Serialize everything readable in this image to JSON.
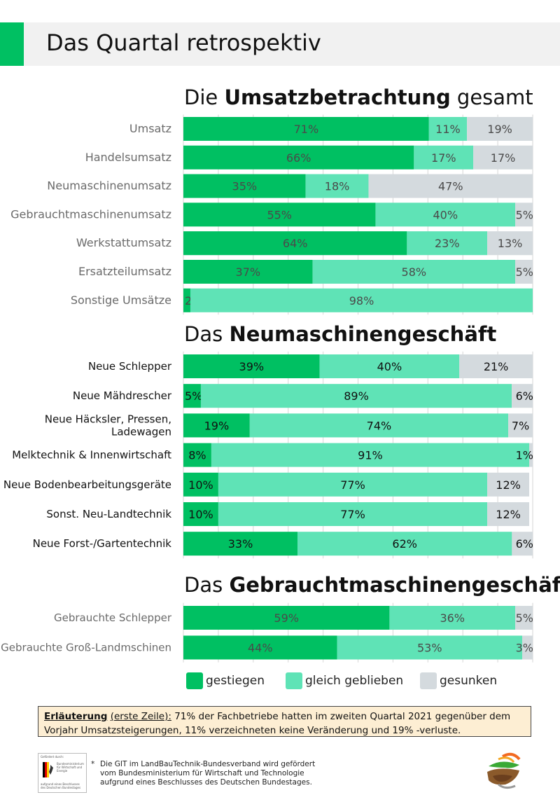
{
  "page_title": "Das Quartal retrospektiv",
  "sections": [
    {
      "heading_pre": "Die ",
      "heading_bold": "Umsatzbetrachtung",
      "heading_post": " gesamt"
    },
    {
      "heading_pre": "Das ",
      "heading_bold": "Neumaschinengeschäft",
      "heading_post": ""
    },
    {
      "heading_pre": "Das ",
      "heading_bold": "Gebrauchtmaschinengeschäft",
      "heading_post": ""
    }
  ],
  "legend": {
    "items": [
      {
        "label": "gestiegen",
        "color": "#00c062"
      },
      {
        "label": "gleich geblieben",
        "color": "#5fe3b6"
      },
      {
        "label": "gesunken",
        "color": "#d4dade"
      }
    ]
  },
  "colors": {
    "up": "#00c062",
    "same": "#5fe3b6",
    "down": "#d4dade",
    "header_accent": "#00c062",
    "header_bg": "#f1f1f1",
    "note_bg": "#fdeed3"
  },
  "chart_data": [
    {
      "type": "bar",
      "orientation": "horizontal",
      "stacked": true,
      "title": "Die Umsatzbetrachtung gesamt",
      "categories": [
        "Umsatz",
        "Handelsumsatz",
        "Neumaschinenumsatz",
        "Gebrauchtmaschinenumsatz",
        "Werkstattumsatz",
        "Ersatzteilumsatz",
        "Sonstige Umsätze"
      ],
      "series": [
        {
          "name": "gestiegen",
          "values": [
            71,
            66,
            35,
            55,
            64,
            37,
            2
          ]
        },
        {
          "name": "gleich geblieben",
          "values": [
            11,
            17,
            18,
            40,
            23,
            58,
            98
          ]
        },
        {
          "name": "gesunken",
          "values": [
            19,
            17,
            47,
            5,
            13,
            5,
            0
          ]
        }
      ],
      "value_labels": [
        [
          "71%",
          "11%",
          "19%"
        ],
        [
          "66%",
          "17%",
          "17%"
        ],
        [
          "35%",
          "18%",
          "47%"
        ],
        [
          "55%",
          "40%",
          "5%"
        ],
        [
          "64%",
          "23%",
          "13%"
        ],
        [
          "37%",
          "58%",
          "5%"
        ],
        [
          "2%",
          "98%",
          ""
        ]
      ],
      "xlim": [
        0,
        100
      ],
      "grid": true,
      "unit": "%"
    },
    {
      "type": "bar",
      "orientation": "horizontal",
      "stacked": true,
      "title": "Das Neumaschinengeschäft",
      "categories": [
        "Neue Schlepper",
        "Neue Mähdrescher",
        "Neue Häcksler, Pressen, Ladewagen",
        "Melktechnik & Innenwirtschaft",
        "Neue Bodenbearbeitungsgeräte",
        "Sonst. Neu-Landtechnik",
        "Neue Forst-/Gartentechnik"
      ],
      "category_lines": [
        [
          "Neue Schlepper"
        ],
        [
          "Neue Mähdrescher"
        ],
        [
          "Neue Häcksler, Pressen,",
          "Ladewagen"
        ],
        [
          "Melktechnik & Innenwirtschaft"
        ],
        [
          "Neue Bodenbearbeitungsgeräte"
        ],
        [
          "Sonst. Neu-Landtechnik"
        ],
        [
          "Neue Forst-/Gartentechnik"
        ]
      ],
      "series": [
        {
          "name": "gestiegen",
          "values": [
            39,
            5,
            19,
            8,
            10,
            10,
            33
          ]
        },
        {
          "name": "gleich geblieben",
          "values": [
            40,
            89,
            74,
            91,
            77,
            77,
            62
          ]
        },
        {
          "name": "gesunken",
          "values": [
            21,
            6,
            7,
            1,
            12,
            12,
            6
          ]
        }
      ],
      "value_labels": [
        [
          "39%",
          "40%",
          "21%"
        ],
        [
          "5%",
          "89%",
          "6%"
        ],
        [
          "19%",
          "74%",
          "7%"
        ],
        [
          "8%",
          "91%",
          "1%"
        ],
        [
          "10%",
          "77%",
          "12%"
        ],
        [
          "10%",
          "77%",
          "12%"
        ],
        [
          "33%",
          "62%",
          "6%"
        ]
      ],
      "xlim": [
        0,
        100
      ],
      "grid": true,
      "unit": "%"
    },
    {
      "type": "bar",
      "orientation": "horizontal",
      "stacked": true,
      "title": "Das Gebrauchtmaschinengeschäft",
      "categories": [
        "Gebrauchte Schlepper",
        "Gebrauchte Groß-Landmschinen"
      ],
      "series": [
        {
          "name": "gestiegen",
          "values": [
            59,
            44
          ]
        },
        {
          "name": "gleich geblieben",
          "values": [
            36,
            53
          ]
        },
        {
          "name": "gesunken",
          "values": [
            5,
            3
          ]
        }
      ],
      "value_labels": [
        [
          "59%",
          "36%",
          "5%"
        ],
        [
          "44%",
          "53%",
          "3%"
        ]
      ],
      "xlim": [
        0,
        100
      ],
      "grid": true,
      "unit": "%"
    }
  ],
  "note": {
    "label": "Erläuterung",
    "sub_label": "(erste Zeile):",
    "text": " 71% der Fachbetriebe hatten im zweiten Quartal 2021 gegenüber dem Vorjahr Umsatzsteigerungen, 11% verzeichneten keine Veränderung und 19% -verluste."
  },
  "funding_logo": {
    "top_text": "Gefördert durch:",
    "ministry": "Bundesministerium für Wirtschaft und Energie",
    "bottom_text": "aufgrund eines Beschlusses des Deutschen Bundestages"
  },
  "footnote": {
    "star": "*",
    "lines": [
      "Die GIT im LandBauTechnik-Bundesverband wird gefördert",
      "vom Bundesministerium für Wirtschaft und Technologie",
      "aufgrund eines Beschlusses des Deutschen Bundestages."
    ]
  }
}
